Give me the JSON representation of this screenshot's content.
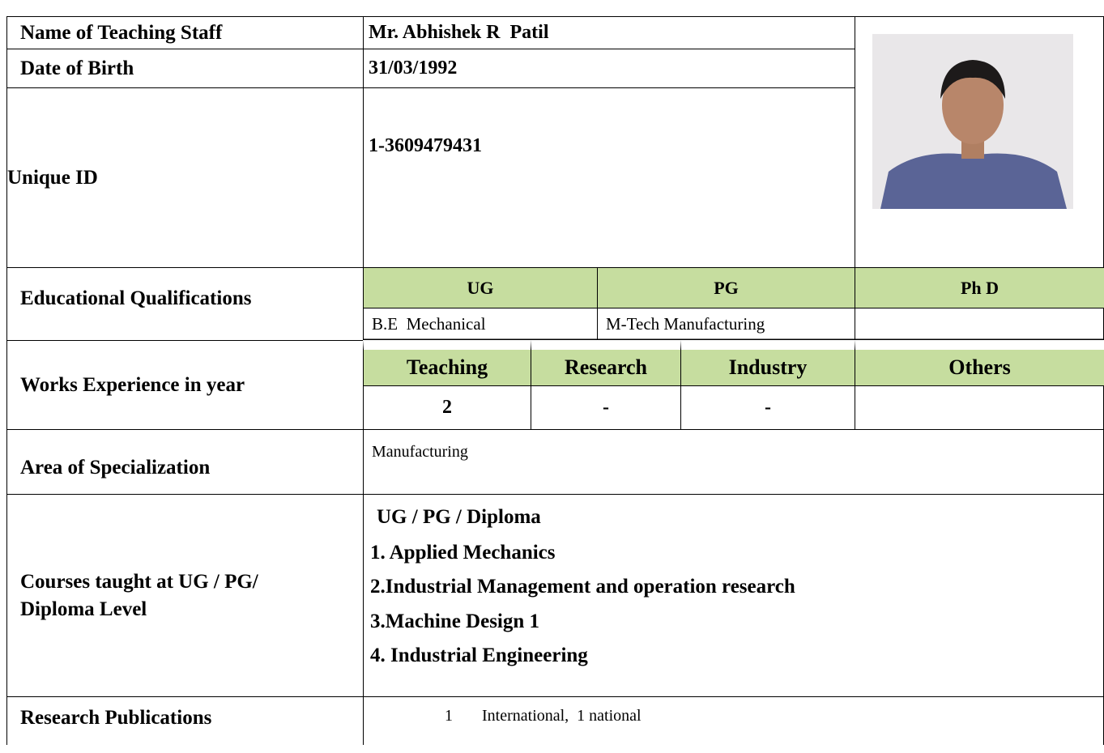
{
  "profile": {
    "name_label": "Name of Teaching Staff",
    "name": "Mr. Abhishek R  Patil",
    "dob_label": "Date of Birth",
    "dob": "31/03/1992",
    "id_label": "Unique ID",
    "id": "1-3609479431"
  },
  "education": {
    "label": "Educational Qualifications",
    "headers": [
      "UG",
      "PG",
      "Ph D"
    ],
    "values": [
      "B.E  Mechanical",
      "M-Tech Manufacturing"
    ]
  },
  "experience": {
    "label": "Works Experience in year",
    "headers": [
      "Teaching",
      "Research",
      "Industry",
      "Others"
    ],
    "values": [
      2,
      "-",
      "-"
    ]
  },
  "specialization": {
    "label": "Area of Specialization",
    "value": "Manufacturing"
  },
  "courses": {
    "label": "Courses taught at UG / PG/ Diploma Level",
    "heading": "UG / PG / Diploma",
    "items": [
      "1. Applied Mechanics",
      "2.Industrial Management and operation research",
      "3.Machine Design 1",
      "4. Industrial Engineering"
    ]
  },
  "publications": {
    "label": "Research Publications",
    "number": 1,
    "text": "International,  1 national"
  }
}
